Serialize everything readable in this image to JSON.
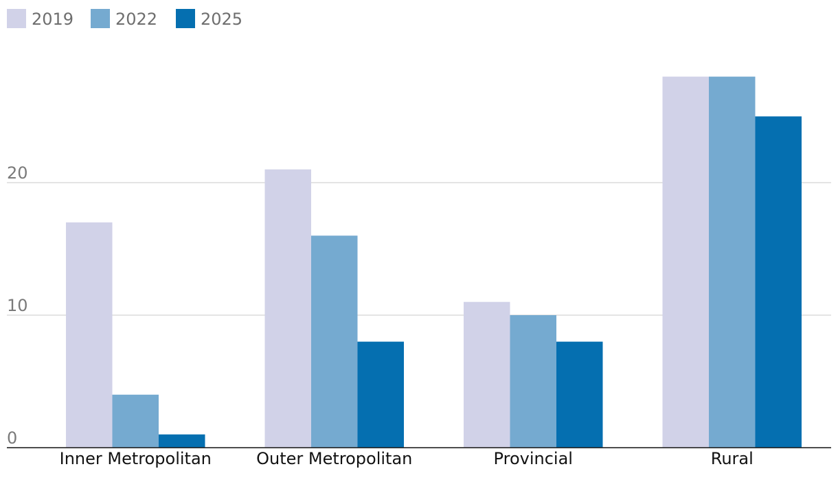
{
  "chart_data": {
    "type": "bar",
    "title": "",
    "xlabel": "",
    "ylabel": "",
    "categories": [
      "Inner Metropolitan",
      "Outer Metropolitan",
      "Provincial",
      "Rural"
    ],
    "series": [
      {
        "name": "2019",
        "color": "#d1d2e8",
        "values": [
          17,
          21,
          11,
          28
        ]
      },
      {
        "name": "2022",
        "color": "#75aad0",
        "values": [
          4,
          16,
          10,
          28
        ]
      },
      {
        "name": "2025",
        "color": "#056fb0",
        "values": [
          1,
          8,
          8,
          25
        ]
      }
    ],
    "ylim": [
      0,
      30
    ],
    "yticks": [
      0,
      10,
      20
    ],
    "ytick_labels": [
      "0",
      "10",
      "20"
    ],
    "grid": true,
    "legend": "top-left"
  },
  "colors": {
    "gridline": "#c8c8c8",
    "baseline": "#121212"
  }
}
